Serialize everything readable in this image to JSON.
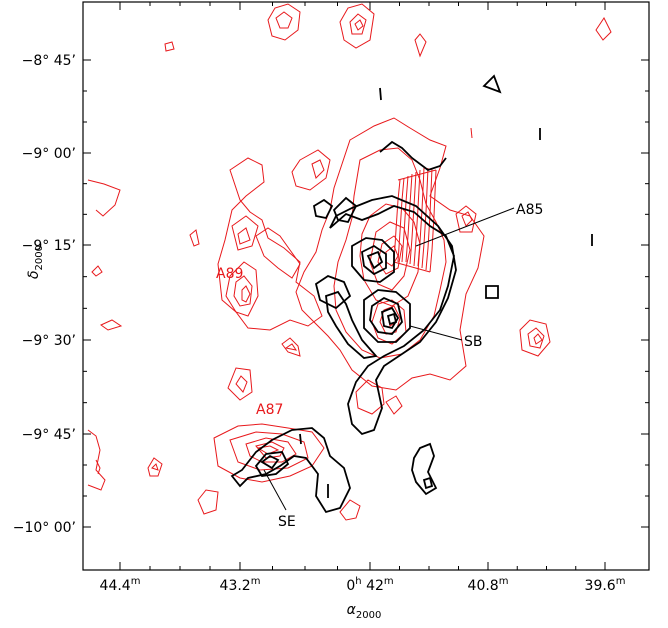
{
  "chart_data": {
    "type": "contour",
    "xlabel": "α",
    "xlabel_sub": "2000",
    "ylabel": "δ",
    "ylabel_sub": "2000",
    "x_ticks": [
      {
        "min": "44.4",
        "sup": "m",
        "prefix": ""
      },
      {
        "min": "43.2",
        "sup": "m",
        "prefix": ""
      },
      {
        "min": "42",
        "sup": "m",
        "prefix": "0",
        "prefix_sup": "h"
      },
      {
        "min": "40.8",
        "sup": "m",
        "prefix": ""
      },
      {
        "min": "39.6",
        "sup": "m",
        "prefix": ""
      }
    ],
    "y_ticks": [
      {
        "deg": "−8°",
        "arcmin": "45’"
      },
      {
        "deg": "−9°",
        "arcmin": "00’"
      },
      {
        "deg": "−9°",
        "arcmin": "15’"
      },
      {
        "deg": "−9°",
        "arcmin": "30’"
      },
      {
        "deg": "−9°",
        "arcmin": "45’"
      },
      {
        "deg": "−10°",
        "arcmin": "00’"
      }
    ],
    "annotations": {
      "red": [
        "A89",
        "A87"
      ],
      "black": [
        "A85",
        "SB",
        "SE"
      ]
    },
    "series": [
      {
        "name": "red",
        "color": "#e8191c"
      },
      {
        "name": "black",
        "color": "#000000"
      }
    ]
  }
}
